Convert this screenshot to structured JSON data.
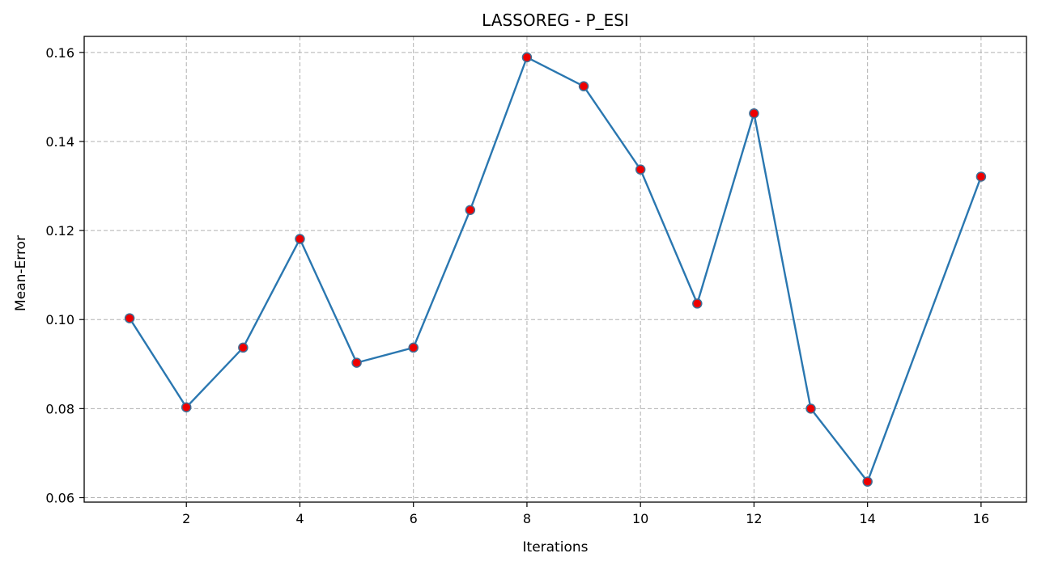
{
  "chart_data": {
    "type": "line",
    "title": "LASSOREG - P_ESI",
    "xlabel": "Iterations",
    "ylabel": "Mean-Error",
    "xlim": [
      0.2,
      16.8
    ],
    "ylim": [
      0.059,
      0.1636
    ],
    "xticks": [
      2,
      4,
      6,
      8,
      10,
      12,
      14,
      16
    ],
    "yticks": [
      0.06,
      0.08,
      0.1,
      0.12,
      0.14,
      0.16
    ],
    "ytick_labels": [
      "0.06",
      "0.08",
      "0.10",
      "0.12",
      "0.14",
      "0.16"
    ],
    "grid": true,
    "line_color": "#2a77b0",
    "marker_fill": "#ee0000",
    "marker_edge": "#3f6f96",
    "x": [
      1,
      2,
      3,
      4,
      5,
      6,
      7,
      8,
      9,
      10,
      11,
      12,
      13,
      14,
      16
    ],
    "y": [
      0.1003,
      0.0803,
      0.0937,
      0.1181,
      0.0903,
      0.0937,
      0.1246,
      0.1589,
      0.1524,
      0.1337,
      0.1036,
      0.1463,
      0.08,
      0.0636,
      0.1321
    ]
  }
}
